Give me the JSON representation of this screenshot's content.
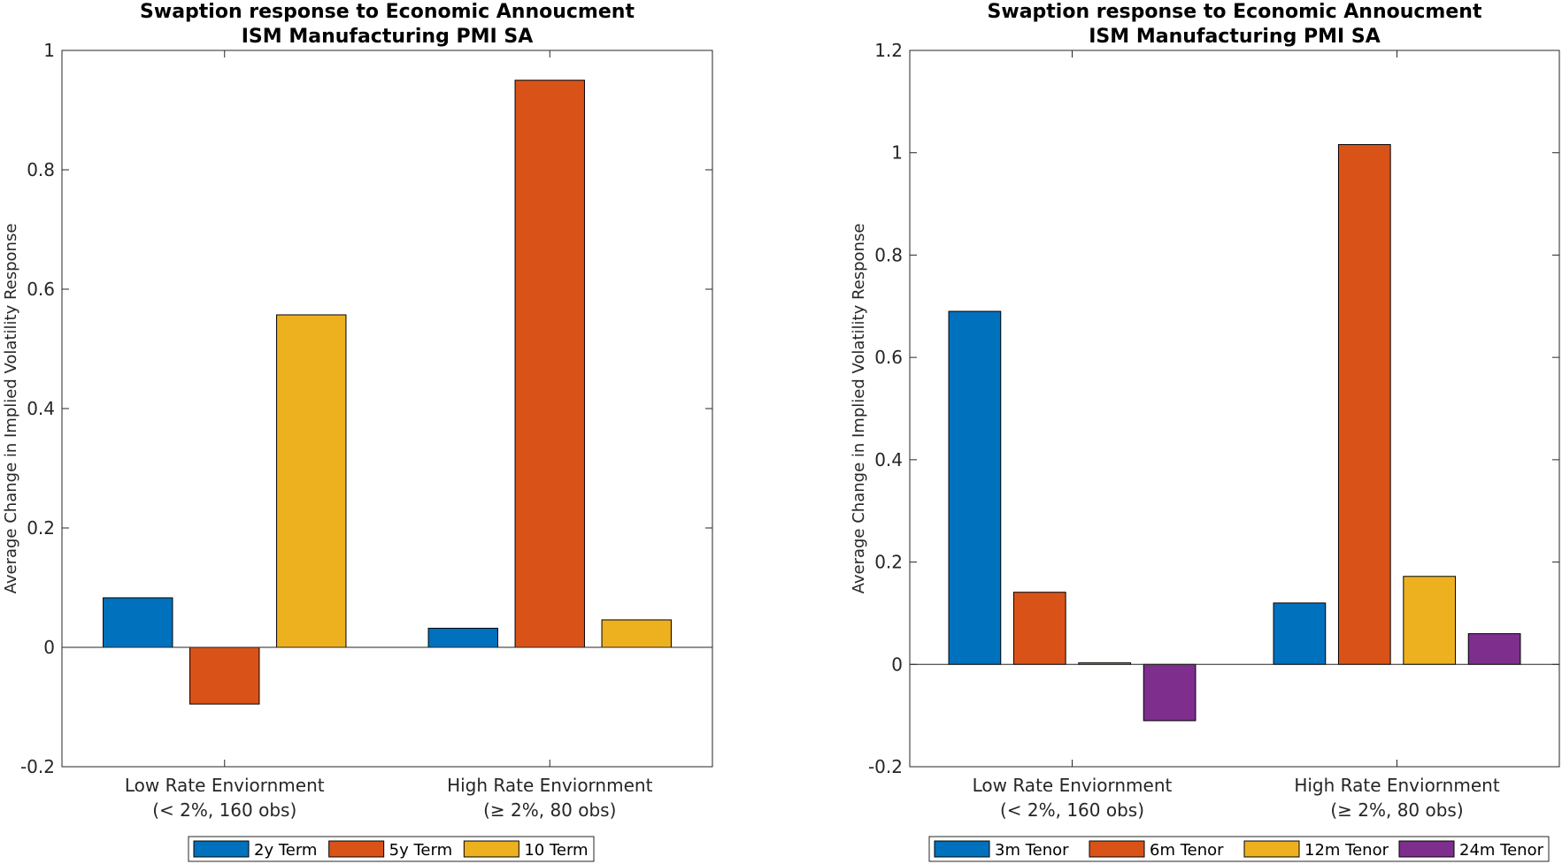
{
  "chart_data": [
    {
      "type": "bar",
      "title": [
        "Swaption response to Economic Annoucment",
        "ISM Manufacturing PMI SA"
      ],
      "ylabel": "Average Change in Implied Volatility Response",
      "xlabel": "",
      "ylim": [
        -0.2,
        1.0
      ],
      "yticks": [
        -0.2,
        0,
        0.2,
        0.4,
        0.6,
        0.8,
        1
      ],
      "ytick_labels": [
        "-0.2",
        "0",
        "0.2",
        "0.4",
        "0.6",
        "0.8",
        "1"
      ],
      "categories": [
        [
          "Low Rate Enviornment",
          "(< 2%, 160 obs)"
        ],
        [
          "High Rate Enviornment",
          "(≥ 2%, 80 obs)"
        ]
      ],
      "series": [
        {
          "name": "2y Term",
          "color": "#0072BD",
          "values": [
            0.083,
            0.032
          ]
        },
        {
          "name": "5y Term",
          "color": "#D95319",
          "values": [
            -0.095,
            0.95
          ]
        },
        {
          "name": "10 Term",
          "color": "#EDB120",
          "values": [
            0.557,
            0.046
          ]
        }
      ],
      "legend_position": "bottom",
      "grid": false
    },
    {
      "type": "bar",
      "title": [
        "Swaption response to Economic Annoucment",
        "ISM Manufacturing PMI SA"
      ],
      "ylabel": "Average Change in Implied Volatility Response",
      "xlabel": "",
      "ylim": [
        -0.2,
        1.2
      ],
      "yticks": [
        -0.2,
        0,
        0.2,
        0.4,
        0.6,
        0.8,
        1,
        1.2
      ],
      "ytick_labels": [
        "-0.2",
        "0",
        "0.2",
        "0.4",
        "0.6",
        "0.8",
        "1",
        "1.2"
      ],
      "categories": [
        [
          "Low Rate Enviornment",
          "(< 2%, 160 obs)"
        ],
        [
          "High Rate Enviornment",
          "(≥ 2%, 80 obs)"
        ]
      ],
      "series": [
        {
          "name": "3m Tenor",
          "color": "#0072BD",
          "values": [
            0.69,
            0.12
          ]
        },
        {
          "name": "6m Tenor",
          "color": "#D95319",
          "values": [
            0.141,
            1.016
          ]
        },
        {
          "name": "12m Tenor",
          "color": "#EDB120",
          "values": [
            0.003,
            0.172
          ]
        },
        {
          "name": "24m Tenor",
          "color": "#7E2F8E",
          "values": [
            -0.11,
            0.06
          ]
        }
      ],
      "legend_position": "bottom",
      "grid": false
    }
  ]
}
